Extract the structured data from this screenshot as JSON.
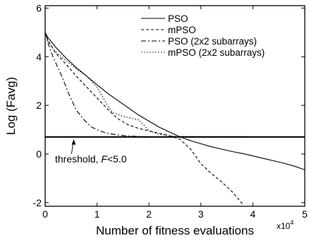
{
  "chart_data": {
    "type": "line",
    "title": "",
    "xlabel": "Number of fitness evaluations",
    "x_multiplier": "x10",
    "x_multiplier_exp": "4",
    "ylabel": "Log (Favg)",
    "xlim": [
      0,
      5
    ],
    "ylim": [
      -2.15,
      6.1
    ],
    "xticks": [
      0,
      1,
      2,
      3,
      4,
      5
    ],
    "yticks": [
      -2,
      0,
      2,
      4,
      6
    ],
    "grid": false,
    "legend_position": "top-right",
    "threshold": 0.7,
    "annotation": {
      "text_prefix": "threshold, ",
      "text_var": "F",
      "text_suffix": "<5.0",
      "label_at": [
        0.1,
        0.2
      ],
      "arrow_to": [
        0.55,
        0.68
      ]
    },
    "series": [
      {
        "name": "PSO",
        "dash": "",
        "x": [
          0,
          0.05,
          0.2,
          0.4,
          0.6,
          0.8,
          1.0,
          1.2,
          1.4,
          1.6,
          1.8,
          2.0,
          2.2,
          2.4,
          2.6,
          2.8,
          3.0,
          3.2,
          3.4,
          3.6,
          3.8,
          4.0,
          4.2,
          4.4,
          4.6,
          4.8,
          5.0
        ],
        "values": [
          5.0,
          4.8,
          4.4,
          3.95,
          3.55,
          3.2,
          2.85,
          2.5,
          2.2,
          1.9,
          1.6,
          1.35,
          1.1,
          0.9,
          0.7,
          0.55,
          0.42,
          0.3,
          0.2,
          0.1,
          0.02,
          -0.08,
          -0.18,
          -0.28,
          -0.38,
          -0.5,
          -0.65
        ]
      },
      {
        "name": "mPSO",
        "dash": "4,3",
        "x": [
          0,
          0.05,
          0.2,
          0.4,
          0.6,
          0.8,
          1.0,
          1.2,
          1.4,
          1.6,
          1.8,
          2.0,
          2.2,
          2.4,
          2.6,
          2.7,
          2.8,
          3.0,
          3.2,
          3.4,
          3.6,
          3.7,
          3.8
        ],
        "values": [
          5.0,
          4.7,
          4.15,
          3.7,
          3.2,
          2.75,
          2.3,
          1.85,
          1.45,
          1.2,
          1.05,
          0.95,
          0.85,
          0.75,
          0.6,
          0.4,
          0.2,
          -0.4,
          -0.8,
          -1.15,
          -1.55,
          -1.8,
          -2.05
        ]
      },
      {
        "name": "PSO (2x2 subarrays)",
        "dash": "7,3,2,3",
        "x": [
          0,
          0.05,
          0.15,
          0.3,
          0.45,
          0.6,
          0.75,
          0.9,
          1.05,
          1.2,
          1.4,
          1.6,
          1.8,
          2.0,
          2.5,
          3.0,
          5.0
        ],
        "values": [
          5.0,
          4.6,
          4.0,
          3.3,
          2.5,
          1.8,
          1.4,
          1.1,
          0.95,
          0.85,
          0.78,
          0.74,
          0.72,
          0.71,
          0.7,
          0.7,
          0.7
        ]
      },
      {
        "name": "mPSO (2x2 subarrays)",
        "dash": "1.5,2.5",
        "x": [
          0,
          0.05,
          0.2,
          0.4,
          0.6,
          0.8,
          1.0,
          1.2,
          1.3,
          1.5,
          1.6,
          1.7,
          1.8,
          1.9,
          2.0,
          2.2,
          2.5,
          5.0
        ],
        "values": [
          5.0,
          4.65,
          4.2,
          3.85,
          3.5,
          3.2,
          2.75,
          2.0,
          1.7,
          1.55,
          1.5,
          1.45,
          1.4,
          1.2,
          0.95,
          0.8,
          0.72,
          0.71
        ]
      }
    ]
  }
}
